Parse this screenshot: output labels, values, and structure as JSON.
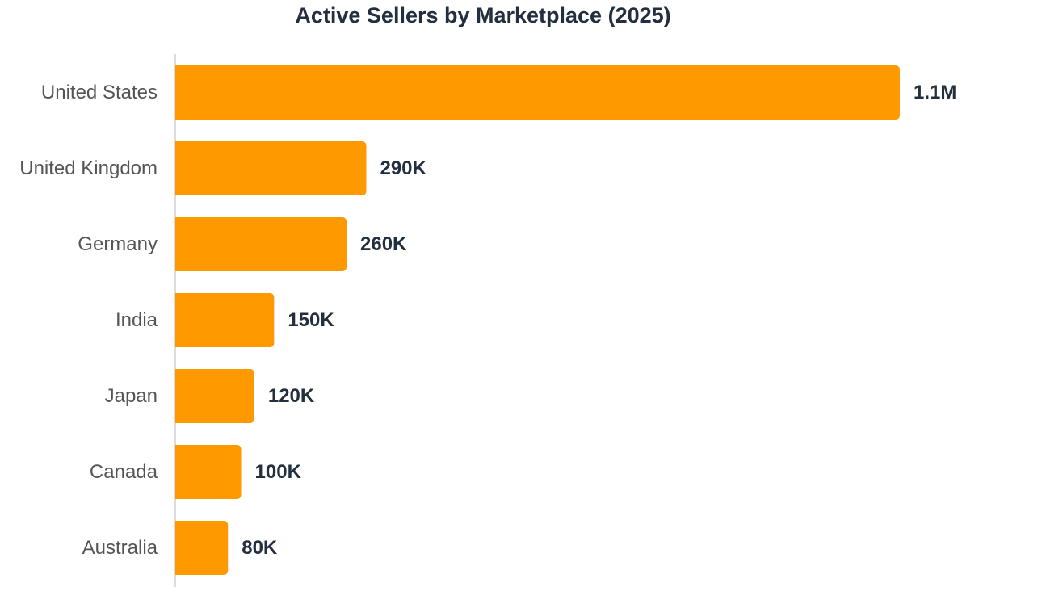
{
  "chart_data": {
    "type": "bar",
    "orientation": "horizontal",
    "title": "Active Sellers by Marketplace (2025)",
    "categories": [
      "United States",
      "United Kingdom",
      "Germany",
      "India",
      "Japan",
      "Canada",
      "Australia"
    ],
    "values": [
      1100000,
      290000,
      260000,
      150000,
      120000,
      100000,
      80000
    ],
    "value_labels": [
      "1.1M",
      "290K",
      "260K",
      "150K",
      "120K",
      "100K",
      "80K"
    ],
    "xlabel": "",
    "ylabel": "",
    "grid": false,
    "legend": "none"
  },
  "colors": {
    "bar": "#ff9900",
    "title": "#232f3e",
    "value_label": "#232f3e",
    "category_label": "#555555",
    "axis_line": "#d0d0d0"
  }
}
